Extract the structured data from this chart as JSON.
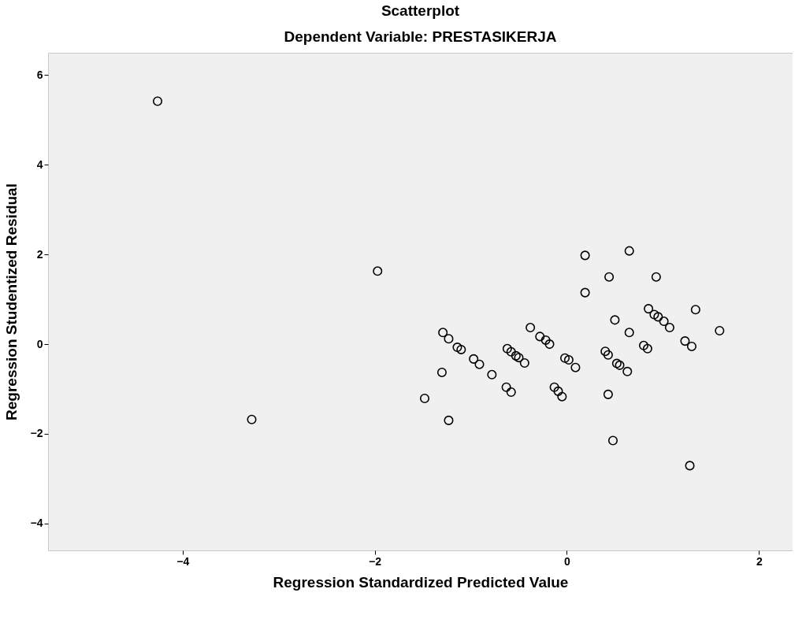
{
  "chart_data": {
    "type": "scatter",
    "title": "Scatterplot",
    "subtitle": "Dependent Variable: PRESTASIKERJA",
    "xlabel": "Regression Standardized Predicted Value",
    "ylabel": "Regression Studentized Residual",
    "x": [
      -4.26,
      -1.97,
      -3.28,
      0.19,
      0.19,
      -1.29,
      -1.23,
      -1.14,
      -1.1,
      -0.97,
      -0.91,
      -0.78,
      -1.3,
      -1.48,
      -1.23,
      -0.38,
      -0.28,
      -0.22,
      -0.18,
      -0.62,
      -0.58,
      -0.53,
      -0.5,
      -0.44,
      -0.63,
      -0.58,
      -0.02,
      0.02,
      0.09,
      -0.13,
      -0.09,
      -0.05,
      0.65,
      0.44,
      0.93,
      0.85,
      0.91,
      0.95,
      1.01,
      1.07,
      1.34,
      1.59,
      0.5,
      0.65,
      1.23,
      1.3,
      0.8,
      0.84,
      0.4,
      0.43,
      0.52,
      0.55,
      0.63,
      0.43,
      0.48,
      1.28
    ],
    "values": [
      5.42,
      1.63,
      -1.68,
      1.98,
      1.15,
      0.26,
      0.12,
      -0.07,
      -0.12,
      -0.33,
      -0.45,
      -0.68,
      -0.63,
      -1.21,
      -1.7,
      0.37,
      0.17,
      0.09,
      0.0,
      -0.1,
      -0.17,
      -0.26,
      -0.3,
      -0.42,
      -0.96,
      -1.07,
      -0.31,
      -0.35,
      -0.52,
      -0.96,
      -1.05,
      -1.17,
      2.08,
      1.5,
      1.5,
      0.79,
      0.66,
      0.61,
      0.51,
      0.37,
      0.77,
      0.3,
      0.54,
      0.26,
      0.07,
      -0.05,
      -0.03,
      -0.1,
      -0.16,
      -0.24,
      -0.43,
      -0.47,
      -0.61,
      -1.12,
      -2.15,
      -2.71
    ],
    "color": "#000000",
    "marker": "circle",
    "xlim": [
      -5.4,
      2.35
    ],
    "ylim": [
      -4.6,
      6.5
    ],
    "xticks": [
      -4,
      -2,
      0,
      2
    ],
    "yticks": [
      -4,
      -2,
      0,
      2,
      4,
      6
    ]
  }
}
